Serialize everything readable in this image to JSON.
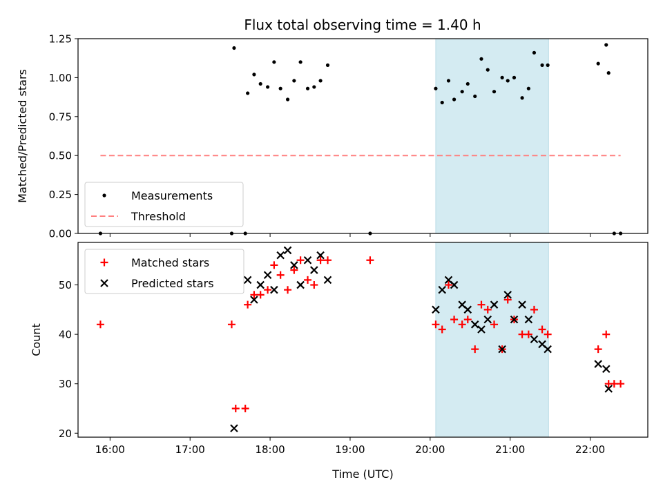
{
  "chart_data": [
    {
      "type": "scatter",
      "title": "Flux total observing time = 1.40 h",
      "xlabel": "",
      "ylabel": "Matched/Predicted stars",
      "ylim": [
        0,
        1.25
      ],
      "xlim_hours": [
        15.6,
        22.72
      ],
      "yticks": [
        "0.00",
        "0.25",
        "0.50",
        "0.75",
        "1.00",
        "1.25"
      ],
      "shaded_span_hours": [
        20.07,
        21.48
      ],
      "shaded_color": "#d4ebf2",
      "legend": {
        "placement": "lower-left",
        "entries": [
          "Measurements",
          "Threshold"
        ]
      },
      "series": [
        {
          "name": "Measurements",
          "marker": "dot",
          "color": "#000000",
          "x": [
            15.88,
            17.52,
            17.55,
            17.69,
            17.72,
            17.8,
            17.88,
            17.97,
            18.05,
            18.13,
            18.22,
            18.3,
            18.38,
            18.47,
            18.55,
            18.63,
            18.72,
            19.25,
            20.07,
            20.15,
            20.23,
            20.3,
            20.4,
            20.47,
            20.56,
            20.64,
            20.72,
            20.8,
            20.9,
            20.97,
            21.05,
            21.15,
            21.23,
            21.3,
            21.4,
            21.47,
            22.1,
            22.2,
            22.23,
            22.3,
            22.38
          ],
          "y": [
            0,
            0,
            1.19,
            0,
            0.9,
            1.02,
            0.96,
            0.94,
            1.1,
            0.93,
            0.86,
            0.98,
            1.1,
            0.93,
            0.94,
            0.98,
            1.08,
            0,
            0.93,
            0.84,
            0.98,
            0.86,
            0.91,
            0.96,
            0.88,
            1.12,
            1.05,
            0.91,
            1.0,
            0.98,
            1.0,
            0.87,
            0.93,
            1.16,
            1.08,
            1.08,
            1.09,
            1.21,
            1.03,
            0,
            0
          ]
        },
        {
          "name": "Threshold",
          "marker": "dashed-line",
          "color": "#ff8080",
          "x": [
            15.88,
            22.38
          ],
          "y": [
            0.5,
            0.5
          ]
        }
      ]
    },
    {
      "type": "scatter",
      "title": "",
      "xlabel": "Time (UTC)",
      "ylabel": "Count",
      "ylim": [
        19.2,
        58.6
      ],
      "xlim_hours": [
        15.6,
        22.72
      ],
      "yticks": [
        "20",
        "30",
        "40",
        "50"
      ],
      "xticks": [
        "16:00",
        "17:00",
        "18:00",
        "19:00",
        "20:00",
        "21:00",
        "22:00"
      ],
      "shaded_span_hours": [
        20.07,
        21.48
      ],
      "shaded_color": "#d4ebf2",
      "legend": {
        "placement": "upper-left",
        "entries": [
          "Matched stars",
          "Predicted stars"
        ]
      },
      "series": [
        {
          "name": "Matched stars",
          "marker": "plus",
          "color": "#ff0000",
          "x": [
            15.88,
            17.52,
            17.57,
            17.69,
            17.72,
            17.8,
            17.88,
            17.97,
            18.05,
            18.13,
            18.22,
            18.3,
            18.38,
            18.47,
            18.55,
            18.63,
            18.72,
            19.25,
            20.07,
            20.15,
            20.23,
            20.3,
            20.4,
            20.47,
            20.56,
            20.64,
            20.72,
            20.8,
            20.9,
            20.97,
            21.05,
            21.15,
            21.23,
            21.3,
            21.4,
            21.47,
            22.1,
            22.2,
            22.23,
            22.3,
            22.38
          ],
          "y": [
            42,
            42,
            25,
            25,
            46,
            48,
            48,
            49,
            54,
            52,
            49,
            53,
            55,
            51,
            50,
            55,
            55,
            55,
            42,
            41,
            50,
            43,
            42,
            43,
            37,
            46,
            45,
            42,
            37,
            47,
            43,
            40,
            40,
            45,
            41,
            40,
            37,
            40,
            30,
            30,
            30
          ]
        },
        {
          "name": "Predicted stars",
          "marker": "x",
          "color": "#000000",
          "x": [
            17.55,
            17.72,
            17.8,
            17.88,
            17.97,
            18.05,
            18.13,
            18.22,
            18.3,
            18.38,
            18.47,
            18.55,
            18.63,
            18.72,
            20.07,
            20.15,
            20.23,
            20.3,
            20.4,
            20.47,
            20.56,
            20.64,
            20.72,
            20.8,
            20.9,
            20.97,
            21.05,
            21.15,
            21.23,
            21.3,
            21.4,
            21.47,
            22.1,
            22.2,
            22.23
          ],
          "y": [
            21,
            51,
            47,
            50,
            52,
            49,
            56,
            57,
            54,
            50,
            55,
            53,
            56,
            51,
            45,
            49,
            51,
            50,
            46,
            45,
            42,
            41,
            43,
            46,
            37,
            48,
            43,
            46,
            43,
            39,
            38,
            37,
            34,
            33,
            29
          ]
        }
      ]
    }
  ]
}
